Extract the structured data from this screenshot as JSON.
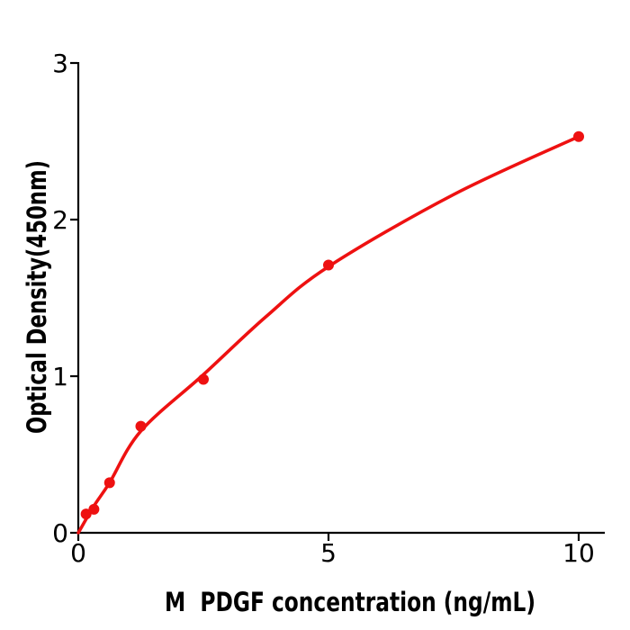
{
  "chart_data": {
    "type": "scatter",
    "title": "",
    "xlabel": "M  PDGF concentration (ng/mL)",
    "ylabel": "Optical Density(450nm)",
    "x": [
      0.156,
      0.3125,
      0.625,
      1.25,
      2.5,
      5,
      10
    ],
    "y": [
      0.12,
      0.15,
      0.32,
      0.68,
      0.98,
      1.71,
      2.53
    ],
    "fit_curve": [
      [
        0,
        0
      ],
      [
        0.31,
        0.17
      ],
      [
        0.625,
        0.32
      ],
      [
        1.25,
        0.65
      ],
      [
        2.5,
        1.01
      ],
      [
        3.75,
        1.38
      ],
      [
        5,
        1.7
      ],
      [
        7.5,
        2.16
      ],
      [
        10,
        2.53
      ]
    ],
    "xticks": [
      0,
      5,
      10
    ],
    "xtick_labels": [
      "0",
      "5",
      "10"
    ],
    "yticks": [
      0,
      1,
      2,
      3
    ],
    "ytick_labels": [
      "0",
      "1",
      "2",
      "3"
    ],
    "xlim": [
      0,
      10.5
    ],
    "ylim": [
      0,
      3
    ],
    "grid": false,
    "legend": "none",
    "marker_color": "#ee1111",
    "line_color": "#ee1111",
    "axis_color": "#000000",
    "background_color": "#ffffff"
  }
}
